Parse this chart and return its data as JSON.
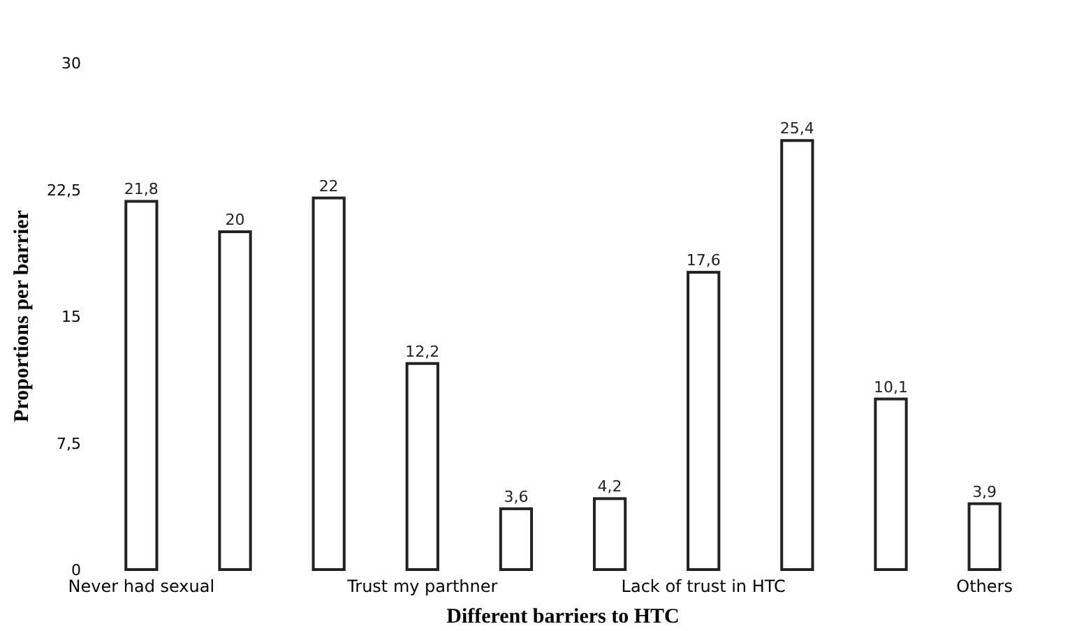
{
  "chart_data": {
    "type": "bar",
    "xlabel": "Different barriers to HTC",
    "ylabel": "Proportions per barrier",
    "categories": [
      "Never had sexual",
      null,
      null,
      "Trust my parthner",
      null,
      null,
      "Lack of trust in HTC",
      null,
      null,
      "Others"
    ],
    "values": [
      21.8,
      20,
      22,
      12.2,
      3.6,
      4.2,
      17.6,
      25.4,
      10.1,
      3.9
    ],
    "value_labels": [
      "21,8",
      "20",
      "22",
      "12,2",
      "3,6",
      "4,2",
      "17,6",
      "25,4",
      "10,1",
      "3,9"
    ],
    "color": "#ffffff",
    "ylim": [
      0,
      30
    ],
    "yticks": [
      0,
      {
        "value": 7.5,
        "label": "7,5"
      },
      15,
      {
        "value": 22.5,
        "label": "22,5"
      },
      30
    ],
    "grid": false
  }
}
